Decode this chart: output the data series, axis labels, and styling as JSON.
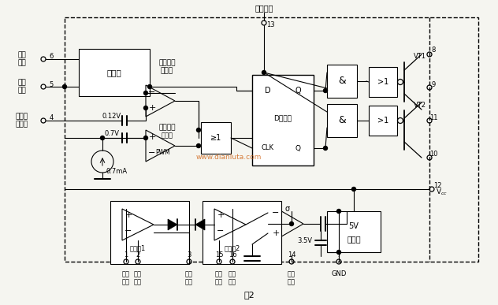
{
  "bg_color": "#f5f5f0",
  "title": "图2",
  "fig_w": 6.32,
  "fig_h": 3.87,
  "xlim": [
    0,
    632
  ],
  "ylim": [
    0,
    387
  ]
}
